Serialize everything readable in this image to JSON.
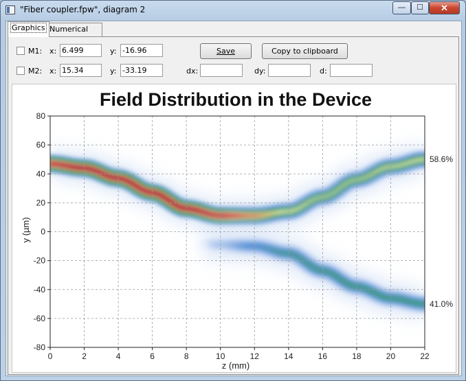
{
  "window": {
    "title": "\"Fiber coupler.fpw\", diagram 2",
    "min_glyph": "—",
    "max_glyph": "☐",
    "close_glyph": "✕"
  },
  "tabs": [
    {
      "label": "Graphics"
    },
    {
      "label": "Numerical data"
    }
  ],
  "marker1": {
    "label": "M1:",
    "x_label": "x:",
    "x_value": "6.499",
    "y_label": "y:",
    "y_value": "-16.96"
  },
  "marker2": {
    "label": "M2:",
    "x_label": "x:",
    "x_value": "15.34",
    "y_label": "y:",
    "y_value": "-33.19"
  },
  "deltas": {
    "dx_label": "dx:",
    "dx_value": "",
    "dy_label": "dy:",
    "dy_value": "",
    "d_label": "d:",
    "d_value": ""
  },
  "buttons": {
    "save": "Save",
    "copy": "Copy to clipboard"
  },
  "chart_data": {
    "type": "heatmap",
    "title": "Field Distribution in the Device",
    "xlabel": "z (mm)",
    "ylabel": "y (µm)",
    "xlim": [
      0,
      22
    ],
    "ylim": [
      -80,
      80
    ],
    "x_ticks": [
      0,
      2,
      4,
      6,
      8,
      10,
      12,
      14,
      16,
      18,
      20,
      22
    ],
    "y_ticks": [
      -80,
      -60,
      -40,
      -20,
      0,
      20,
      40,
      60,
      80
    ],
    "grid": true,
    "annotations": [
      {
        "text": "58.6%",
        "y": 50
      },
      {
        "text": "41.0%",
        "y": -50
      }
    ],
    "upper_beam": {
      "z": [
        0,
        2,
        4,
        6,
        8,
        10,
        12,
        14,
        16,
        18,
        20,
        22
      ],
      "y": [
        47,
        44,
        37,
        27,
        16,
        11,
        11,
        14,
        24,
        36,
        45,
        50
      ],
      "intensity": [
        0.95,
        1.0,
        1.0,
        1.0,
        1.0,
        0.95,
        0.8,
        0.6,
        0.55,
        0.55,
        0.58,
        0.6
      ]
    },
    "lower_beam": {
      "z": [
        9,
        10,
        12,
        14,
        16,
        18,
        20,
        22
      ],
      "y": [
        -8,
        -9,
        -10,
        -15,
        -27,
        -38,
        -46,
        -50
      ],
      "intensity": [
        0.05,
        0.15,
        0.3,
        0.38,
        0.4,
        0.41,
        0.41,
        0.41
      ]
    }
  }
}
